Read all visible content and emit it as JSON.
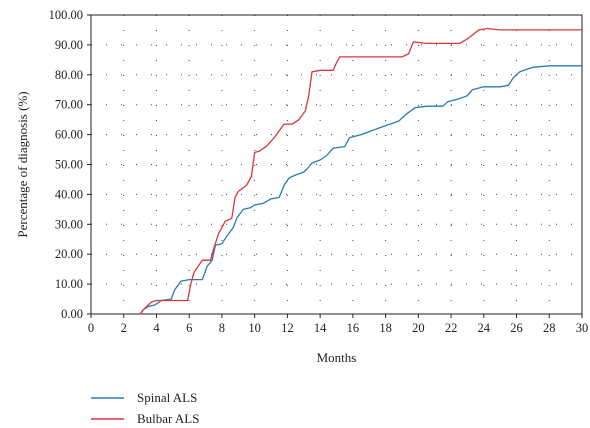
{
  "chart_data": {
    "type": "line",
    "xlabel": "Months",
    "ylabel": "Percentage of diagnosis (%)",
    "xlim": [
      0,
      30
    ],
    "ylim": [
      0,
      100
    ],
    "x_ticks": [
      0,
      2,
      4,
      6,
      8,
      10,
      12,
      14,
      16,
      18,
      20,
      22,
      24,
      26,
      28,
      30
    ],
    "y_ticks": [
      "0.00",
      "10.00",
      "20.00",
      "30.00",
      "40.00",
      "50.00",
      "60.00",
      "70.00",
      "80.00",
      "90.00",
      "100.00"
    ],
    "grid": "dotted",
    "legend_placement": "bottom-left",
    "series": [
      {
        "name": "Spinal ALS",
        "color": "#2a7ab0",
        "points": [
          [
            3.0,
            0
          ],
          [
            3.2,
            1.5
          ],
          [
            3.5,
            2.5
          ],
          [
            3.9,
            3
          ],
          [
            4.3,
            4.5
          ],
          [
            4.9,
            5
          ],
          [
            5.1,
            8
          ],
          [
            5.5,
            11
          ],
          [
            6.0,
            11.5
          ],
          [
            6.8,
            11.5
          ],
          [
            7.1,
            16
          ],
          [
            7.4,
            18
          ],
          [
            7.6,
            23
          ],
          [
            8.0,
            23.5
          ],
          [
            8.3,
            26
          ],
          [
            8.7,
            29
          ],
          [
            8.9,
            32
          ],
          [
            9.3,
            35
          ],
          [
            9.7,
            35.5
          ],
          [
            10.0,
            36.5
          ],
          [
            10.5,
            37
          ],
          [
            11.0,
            38.5
          ],
          [
            11.5,
            39
          ],
          [
            11.8,
            43
          ],
          [
            12.1,
            45.5
          ],
          [
            12.5,
            46.5
          ],
          [
            13.0,
            47.5
          ],
          [
            13.2,
            48.5
          ],
          [
            13.5,
            50.5
          ],
          [
            14.0,
            51.5
          ],
          [
            14.4,
            53
          ],
          [
            14.8,
            55.5
          ],
          [
            15.5,
            56
          ],
          [
            15.8,
            59
          ],
          [
            16.5,
            60
          ],
          [
            17.0,
            61
          ],
          [
            18.0,
            63
          ],
          [
            18.8,
            64.5
          ],
          [
            19.3,
            67
          ],
          [
            19.8,
            69
          ],
          [
            20.5,
            69.5
          ],
          [
            21.5,
            69.5
          ],
          [
            21.8,
            71
          ],
          [
            22.5,
            72
          ],
          [
            23.0,
            73
          ],
          [
            23.3,
            75
          ],
          [
            24.0,
            76
          ],
          [
            25.0,
            76
          ],
          [
            25.5,
            76.5
          ],
          [
            25.8,
            79
          ],
          [
            26.2,
            81
          ],
          [
            27.0,
            82.5
          ],
          [
            28.0,
            83
          ],
          [
            30.0,
            83
          ]
        ]
      },
      {
        "name": "Bulbar ALS",
        "color": "#d9373e",
        "points": [
          [
            3.0,
            0
          ],
          [
            3.3,
            2
          ],
          [
            3.7,
            4
          ],
          [
            4.0,
            4.5
          ],
          [
            5.0,
            4.5
          ],
          [
            5.9,
            4.5
          ],
          [
            6.1,
            10
          ],
          [
            6.3,
            14
          ],
          [
            6.8,
            18
          ],
          [
            7.3,
            18
          ],
          [
            7.5,
            22
          ],
          [
            7.8,
            27
          ],
          [
            8.2,
            31
          ],
          [
            8.6,
            32
          ],
          [
            8.8,
            39
          ],
          [
            9.0,
            41
          ],
          [
            9.5,
            43
          ],
          [
            9.8,
            46
          ],
          [
            10.0,
            54
          ],
          [
            10.3,
            54.5
          ],
          [
            10.7,
            56
          ],
          [
            11.2,
            59
          ],
          [
            11.8,
            63.5
          ],
          [
            12.3,
            63.5
          ],
          [
            12.7,
            65
          ],
          [
            13.1,
            68
          ],
          [
            13.3,
            73
          ],
          [
            13.5,
            81
          ],
          [
            14.0,
            81.5
          ],
          [
            14.8,
            81.5
          ],
          [
            15.0,
            84
          ],
          [
            15.2,
            86
          ],
          [
            16.5,
            86
          ],
          [
            19.0,
            86
          ],
          [
            19.4,
            87
          ],
          [
            19.7,
            91
          ],
          [
            20.5,
            90.5
          ],
          [
            22.5,
            90.5
          ],
          [
            23.0,
            92
          ],
          [
            23.7,
            95
          ],
          [
            24.2,
            95.5
          ],
          [
            25.0,
            95
          ],
          [
            30.0,
            95
          ]
        ]
      }
    ]
  }
}
